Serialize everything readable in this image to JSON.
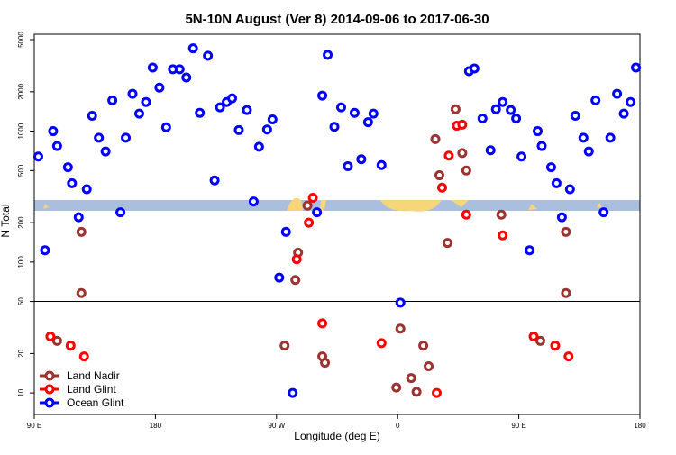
{
  "chart_data": {
    "type": "scatter",
    "title": "5N-10N August (Ver 8)   2014-09-06 to 2017-06-30",
    "xlabel": "Longitude (deg E)",
    "ylabel": "N Total",
    "log_y": true,
    "legend": "lower left",
    "xlim": [
      90,
      540
    ],
    "xticks": [
      {
        "value": 90,
        "label": "90 E"
      },
      180,
      {
        "value": 270,
        "label": "90 W"
      },
      {
        "value": 360,
        "label": "0"
      },
      {
        "value": 450,
        "label": "90 E"
      },
      {
        "value": 540,
        "label": "180"
      }
    ],
    "ylim": [
      6.85,
      5500
    ],
    "yticks": [
      10,
      20,
      50,
      100,
      200,
      500,
      1000,
      2000,
      5000
    ],
    "series": [
      {
        "name": "Land Nadir",
        "color": "#9b3430",
        "x": [
          107,
          125,
          125,
          276,
          284,
          286,
          293,
          304,
          306,
          359,
          362,
          370,
          374,
          379,
          383,
          388,
          391,
          397,
          403,
          408,
          411,
          437,
          466,
          485,
          485
        ],
        "values": [
          25,
          170,
          58,
          23,
          73,
          118,
          270,
          19,
          17,
          11,
          31,
          13,
          10.2,
          23,
          16,
          870,
          460,
          140,
          1470,
          680,
          500,
          230,
          25,
          170,
          58
        ]
      },
      {
        "name": "Land Glint",
        "color": "#ff0000",
        "x": [
          102,
          117,
          127,
          285,
          294,
          297,
          304,
          348,
          389,
          393,
          398,
          404,
          408,
          411,
          438,
          461,
          477,
          487
        ],
        "values": [
          27,
          23,
          19,
          105,
          200,
          310,
          34,
          24,
          10,
          370,
          650,
          1100,
          1120,
          230,
          160,
          27,
          23,
          19
        ]
      },
      {
        "name": "Ocean Glint",
        "color": "#0000ff",
        "x": [
          93,
          98,
          104,
          107,
          115,
          118,
          123,
          129,
          133,
          138,
          143,
          148,
          154,
          158,
          163,
          168,
          173,
          178,
          183,
          188,
          193,
          198,
          203,
          208,
          213,
          219,
          224,
          228,
          233,
          237,
          242,
          248,
          253,
          257,
          263,
          267,
          272,
          277,
          282,
          300,
          304,
          308,
          313,
          318,
          323,
          328,
          333,
          338,
          342,
          348,
          362,
          413,
          417,
          423,
          429,
          433,
          438,
          444,
          448,
          452,
          458,
          464,
          467,
          474,
          478,
          482,
          488,
          492,
          498,
          502,
          507,
          513,
          518,
          523,
          528,
          533,
          537
        ],
        "values": [
          640,
          123,
          1000,
          770,
          530,
          400,
          220,
          360,
          1310,
          890,
          700,
          1720,
          240,
          890,
          1930,
          1360,
          1670,
          3060,
          2150,
          1070,
          2970,
          2970,
          2570,
          4290,
          1380,
          3770,
          420,
          1520,
          1670,
          1780,
          1020,
          1450,
          290,
          760,
          1030,
          1230,
          76,
          170,
          10,
          240,
          1870,
          3830,
          1080,
          1520,
          540,
          1380,
          610,
          1170,
          1360,
          550,
          49,
          2870,
          3010,
          1250,
          715,
          1470,
          1670,
          1450,
          1250,
          640,
          123,
          1000,
          770,
          530,
          400,
          220,
          360,
          1310,
          890,
          700,
          1720,
          240,
          890,
          1930,
          1360,
          1670,
          3060
        ]
      }
    ]
  }
}
